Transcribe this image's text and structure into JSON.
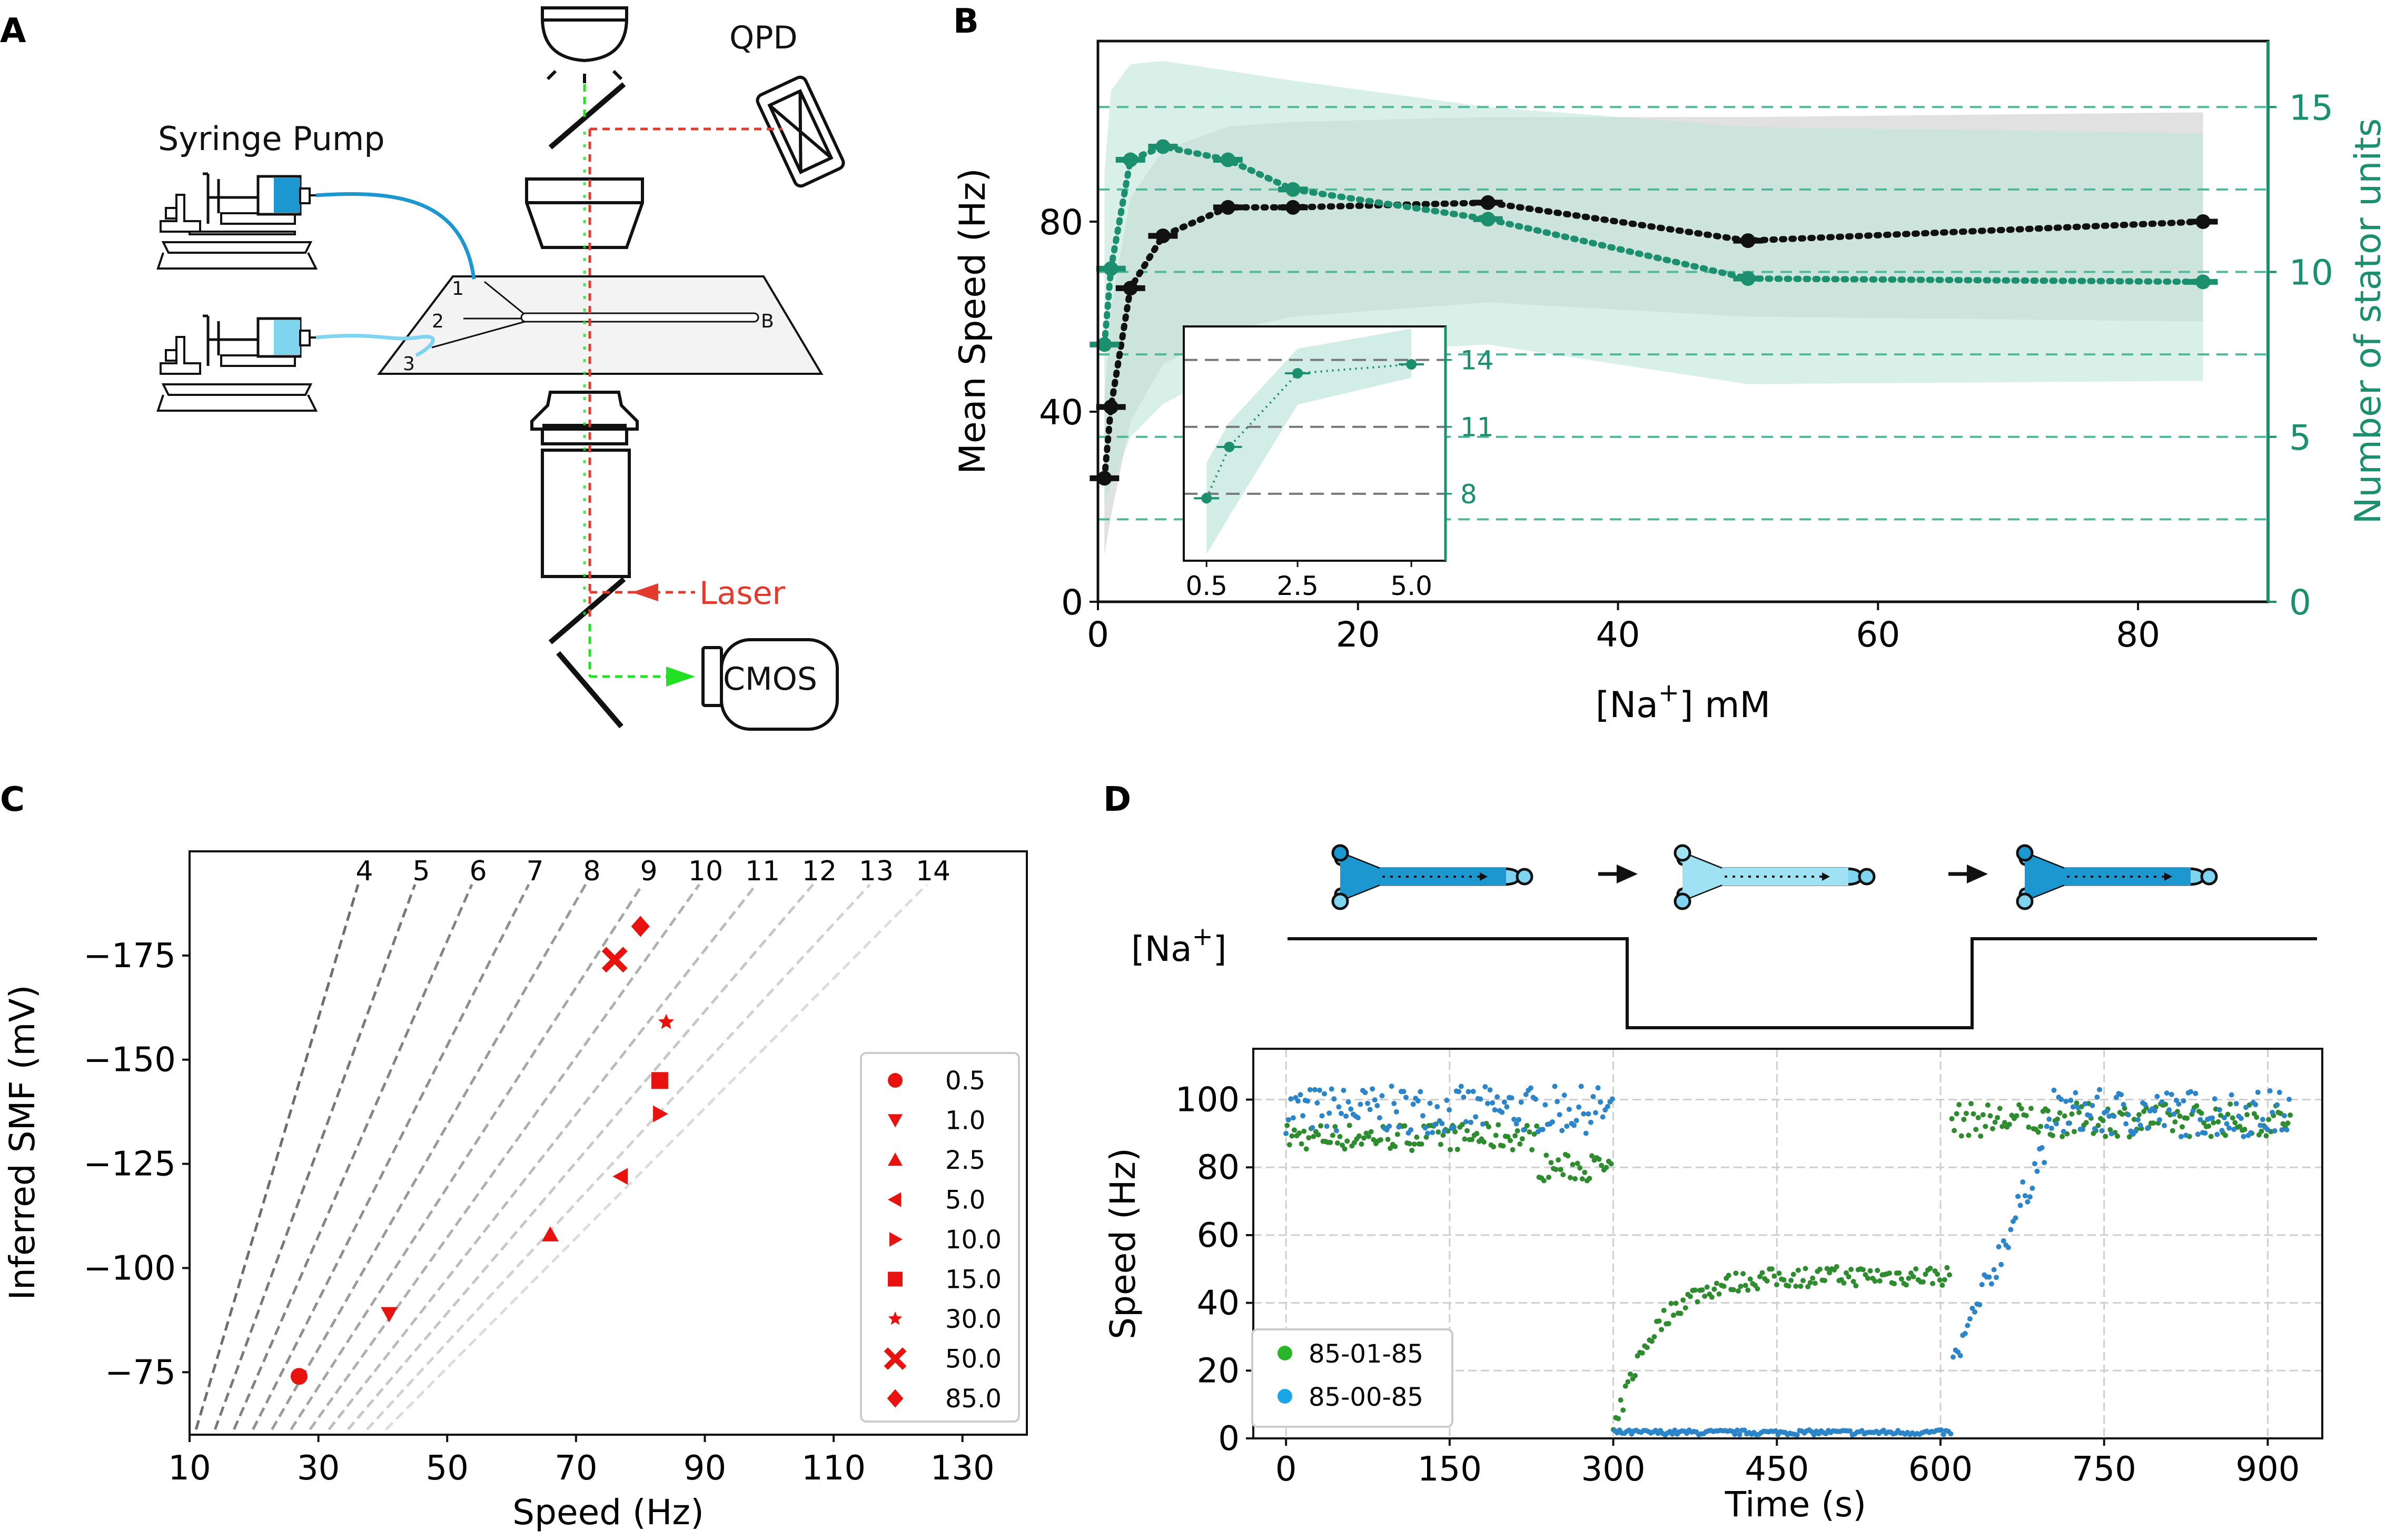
{
  "panels": {
    "a_label": "A",
    "b_label": "B",
    "c_label": "C",
    "d_label": "D"
  },
  "setup": {
    "syringe_pump": "Syringe Pump",
    "qpd": "QPD",
    "laser": "Laser",
    "cmos": "CMOS",
    "channel_labels": [
      "1",
      "2",
      "3",
      "B"
    ]
  },
  "colors": {
    "black": "#111111",
    "teal": "#1b8f6e",
    "teal_band": "#bfe6da",
    "gray_band": "#c9c9c9",
    "red": "#e8130f",
    "green_series": "#2e8b2e",
    "blue_series": "#2c85c8",
    "laser_red": "#e23b2e",
    "light_green": "#22e022",
    "syringe_dark": "#1d97cf",
    "syringe_light": "#7fd4ef"
  },
  "panel_d_schematic": {
    "na_label_prefix": "[Na",
    "na_label_sup": "+",
    "na_label_suffix": "]"
  },
  "chart_data": [
    {
      "id": "B",
      "type": "line",
      "xlabel_prefix": "[Na",
      "xlabel_sup": "+",
      "xlabel_suffix": "] mM",
      "ylabel": "Mean Speed (Hz)",
      "y2label": "Number of stator units",
      "xlim": [
        0,
        90
      ],
      "ylim": [
        0,
        118
      ],
      "y2lim": [
        0,
        17
      ],
      "xticks": [
        0,
        20,
        40,
        60,
        80
      ],
      "yticks": [
        0,
        40,
        80
      ],
      "y2ticks": [
        0,
        5,
        10,
        15
      ],
      "dashed_lines_y2": [
        2.5,
        5,
        7.5,
        10,
        12.5,
        15
      ],
      "series": [
        {
          "name": "Mean speed",
          "axis": "left",
          "x": [
            0.5,
            1,
            2.5,
            5,
            10,
            15,
            30,
            50,
            85
          ],
          "values": [
            26,
            41,
            66,
            77,
            83,
            83,
            84,
            76,
            80
          ],
          "band_upper": [
            42,
            62,
            85,
            95,
            100,
            101,
            102,
            102,
            103
          ],
          "band_lower": [
            10,
            18,
            38,
            50,
            57,
            60,
            63,
            60,
            59
          ]
        },
        {
          "name": "Number of stator units",
          "axis": "right",
          "x": [
            0.5,
            1,
            2.5,
            5,
            10,
            15,
            30,
            50,
            85
          ],
          "values": [
            7.8,
            10.1,
            13.4,
            13.8,
            13.4,
            12.5,
            11.6,
            9.8,
            9.7
          ],
          "band_upper": [
            13,
            15.5,
            16.3,
            16.4,
            16.1,
            15.8,
            15.0,
            14.4,
            14.2
          ],
          "band_lower": [
            3,
            3.5,
            5,
            6,
            7,
            7.5,
            7.8,
            6.6,
            6.7
          ]
        }
      ],
      "inset": {
        "xticks": [
          0.5,
          2.5,
          5.0
        ],
        "y2ticks": [
          8,
          11,
          14
        ],
        "x": [
          0.5,
          1,
          2.5,
          5
        ],
        "values": [
          7.8,
          10.1,
          13.4,
          13.8
        ]
      }
    },
    {
      "id": "C",
      "type": "scatter",
      "xlabel": "Speed (Hz)",
      "ylabel": "Inferred SMF (mV)",
      "xlim": [
        10,
        140
      ],
      "ylim": [
        -60,
        -200
      ],
      "xticks": [
        10,
        30,
        50,
        70,
        90,
        110,
        130
      ],
      "yticks": [
        -75,
        -100,
        -125,
        -150,
        -175
      ],
      "line_labels": [
        "4",
        "5",
        "6",
        "7",
        "8",
        "9",
        "10",
        "11",
        "12",
        "13",
        "14"
      ],
      "legend": [
        "0.5",
        "1.0",
        "2.5",
        "5.0",
        "10.0",
        "15.0",
        "30.0",
        "50.0",
        "85.0"
      ],
      "points": [
        {
          "label": "0.5",
          "marker": "circle",
          "x": 27,
          "y": -74
        },
        {
          "label": "1.0",
          "marker": "triangle-down",
          "x": 41,
          "y": -89
        },
        {
          "label": "2.5",
          "marker": "triangle-up",
          "x": 66,
          "y": -108
        },
        {
          "label": "5.0",
          "marker": "triangle-left",
          "x": 77,
          "y": -122
        },
        {
          "label": "10.0",
          "marker": "triangle-right",
          "x": 83,
          "y": -137
        },
        {
          "label": "15.0",
          "marker": "square",
          "x": 83,
          "y": -145
        },
        {
          "label": "30.0",
          "marker": "star",
          "x": 84,
          "y": -159
        },
        {
          "label": "50.0",
          "marker": "x",
          "x": 76,
          "y": -174
        },
        {
          "label": "85.0",
          "marker": "diamond",
          "x": 80,
          "y": -182
        }
      ]
    },
    {
      "id": "D",
      "type": "scatter",
      "xlabel": "Time (s)",
      "ylabel": "Speed (Hz)",
      "xlim": [
        -30,
        950
      ],
      "ylim": [
        0,
        115
      ],
      "xticks": [
        0,
        150,
        300,
        450,
        600,
        750,
        900
      ],
      "yticks": [
        0,
        20,
        40,
        60,
        80,
        100
      ],
      "series": [
        {
          "name": "85-01-85",
          "color": "green"
        },
        {
          "name": "85-00-85",
          "color": "blue"
        }
      ]
    }
  ]
}
